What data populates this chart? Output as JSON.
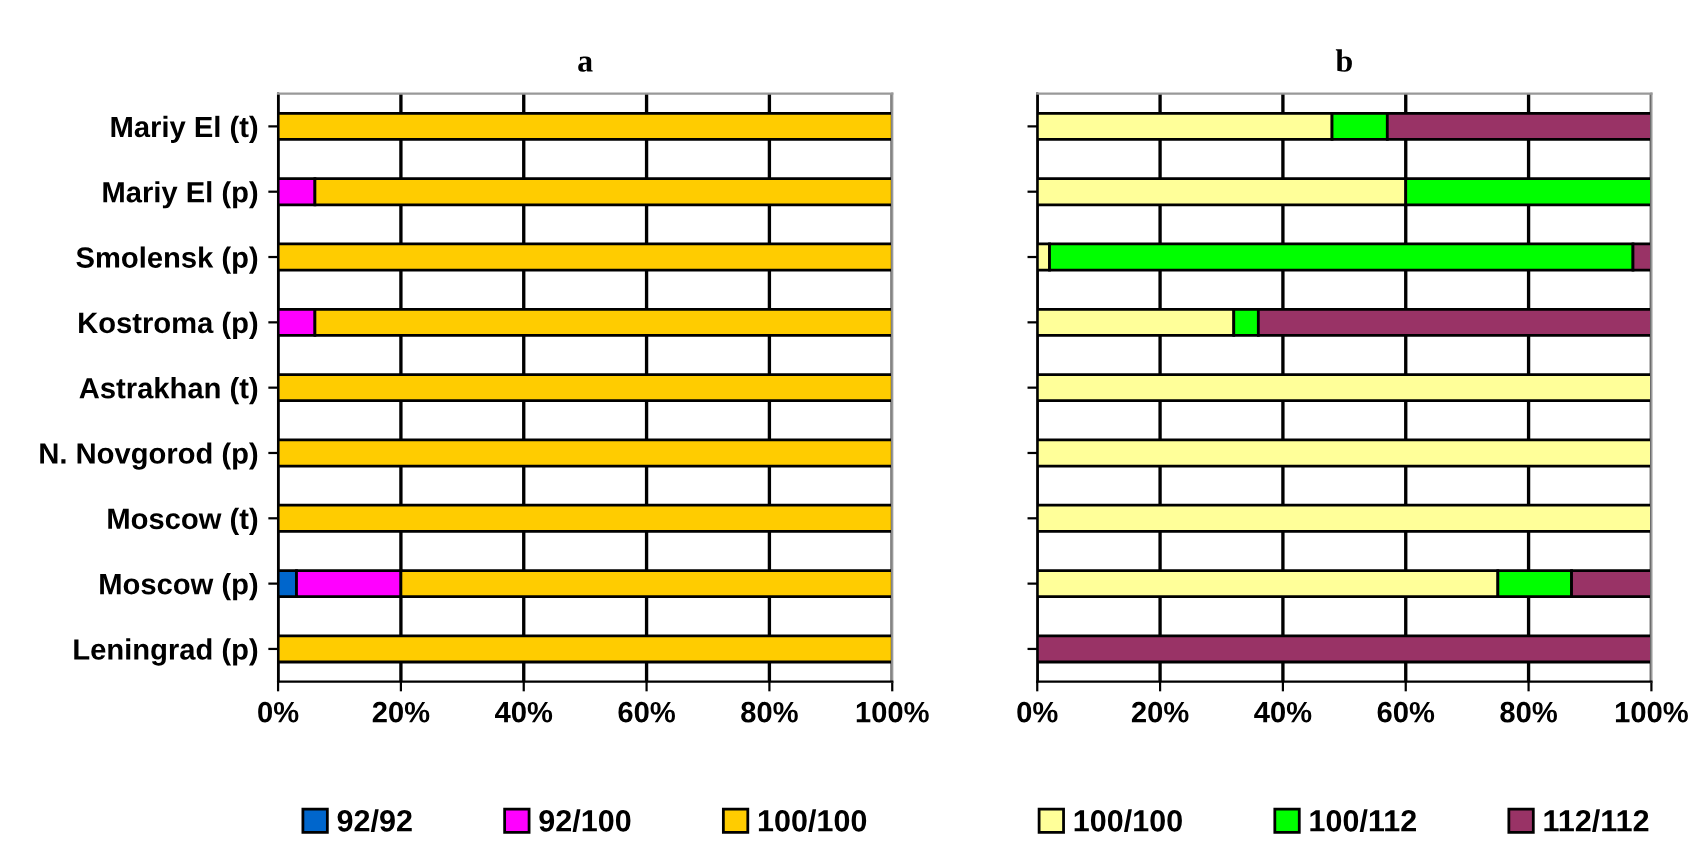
{
  "chart_data": [
    {
      "type": "bar",
      "title": "a",
      "orientation": "horizontal",
      "stacked": true,
      "categories": [
        "Mariy El (t)",
        "Mariy El (p)",
        "Smolensk (p)",
        "Kostroma (p)",
        "Astrakhan (t)",
        "N. Novgorod (p)",
        "Moscow (t)",
        "Moscow (p)",
        "Leningrad (p)"
      ],
      "series": [
        {
          "name": "92/92",
          "color": "#0066cc",
          "values": [
            0,
            0,
            0,
            0,
            0,
            0,
            0,
            3,
            0
          ]
        },
        {
          "name": "92/100",
          "color": "#ff00ff",
          "values": [
            0,
            6,
            0,
            6,
            0,
            0,
            0,
            17,
            0
          ]
        },
        {
          "name": "100/100",
          "color": "#ffcc00",
          "values": [
            100,
            94,
            100,
            94,
            100,
            100,
            100,
            80,
            100
          ]
        }
      ],
      "xlim": [
        0,
        100
      ],
      "xticks": [
        {
          "value": 0,
          "label": "0%"
        },
        {
          "value": 20,
          "label": "20%"
        },
        {
          "value": 40,
          "label": "40%"
        },
        {
          "value": 60,
          "label": "60%"
        },
        {
          "value": 80,
          "label": "80%"
        },
        {
          "value": 100,
          "label": "100%"
        }
      ],
      "grid": "x",
      "legend": "bottom"
    },
    {
      "type": "bar",
      "title": "b",
      "orientation": "horizontal",
      "stacked": true,
      "categories": [
        null,
        null,
        null,
        null,
        null,
        null,
        null,
        null,
        null
      ],
      "series": [
        {
          "name": "100/100",
          "color": "#ffff99",
          "values": [
            48,
            60,
            2,
            32,
            100,
            100,
            100,
            75,
            0
          ]
        },
        {
          "name": "100/112",
          "color": "#00ff00",
          "values": [
            9,
            40,
            95,
            4,
            0,
            0,
            0,
            12,
            0
          ]
        },
        {
          "name": "112/112",
          "color": "#993366",
          "values": [
            43,
            0,
            3,
            64,
            0,
            0,
            0,
            13,
            100
          ]
        }
      ],
      "xlim": [
        0,
        100
      ],
      "xticks": [
        {
          "value": 0,
          "label": "0%"
        },
        {
          "value": 20,
          "label": "20%"
        },
        {
          "value": 40,
          "label": "40%"
        },
        {
          "value": 60,
          "label": "60%"
        },
        {
          "value": 80,
          "label": "80%"
        },
        {
          "value": 100,
          "label": "100%"
        }
      ],
      "grid": "x",
      "legend": "bottom"
    }
  ]
}
